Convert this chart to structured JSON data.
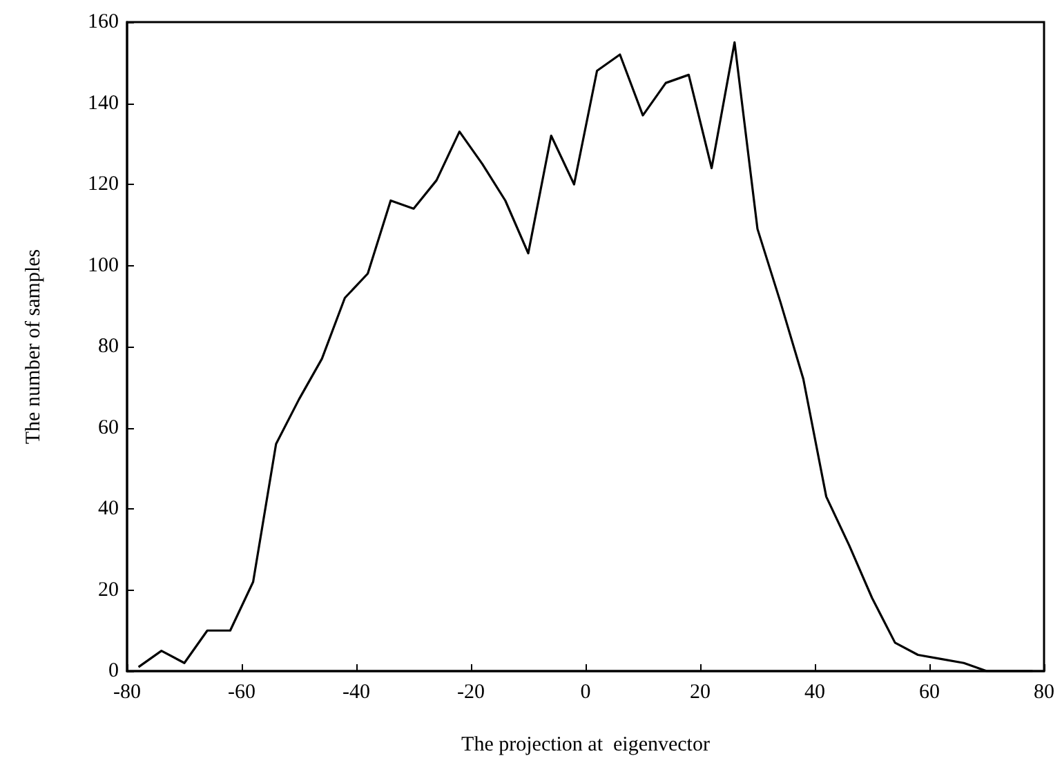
{
  "chart_data": {
    "type": "line",
    "xlabel": "The projection at  eigenvector",
    "ylabel": "The number of samples",
    "x": [
      -78,
      -74,
      -70,
      -66,
      -62,
      -58,
      -54,
      -50,
      -46,
      -42,
      -38,
      -34,
      -30,
      -26,
      -22,
      -18,
      -14,
      -10,
      -6,
      -2,
      2,
      6,
      10,
      14,
      18,
      22,
      26,
      30,
      34,
      38,
      42,
      46,
      50,
      54,
      58,
      62,
      66,
      70,
      74,
      78
    ],
    "series": [
      {
        "color": "#000000",
        "values": [
          1,
          5,
          2,
          10,
          10,
          22,
          56,
          67,
          77,
          92,
          98,
          116,
          114,
          121,
          133,
          125,
          116,
          103,
          132,
          120,
          148,
          152,
          137,
          145,
          147,
          124,
          155,
          109,
          91,
          72,
          43,
          31,
          18,
          7,
          4,
          3,
          2,
          0,
          0,
          0
        ]
      }
    ],
    "xlim": [
      -80,
      80
    ],
    "xticks": [
      -80,
      -60,
      -40,
      -20,
      0,
      20,
      40,
      60,
      80
    ],
    "ylim": [
      0,
      160
    ],
    "yticks": [
      0,
      20,
      40,
      60,
      80,
      100,
      120,
      140,
      160
    ],
    "grid": false,
    "marker": "none",
    "line_style": "solid"
  }
}
